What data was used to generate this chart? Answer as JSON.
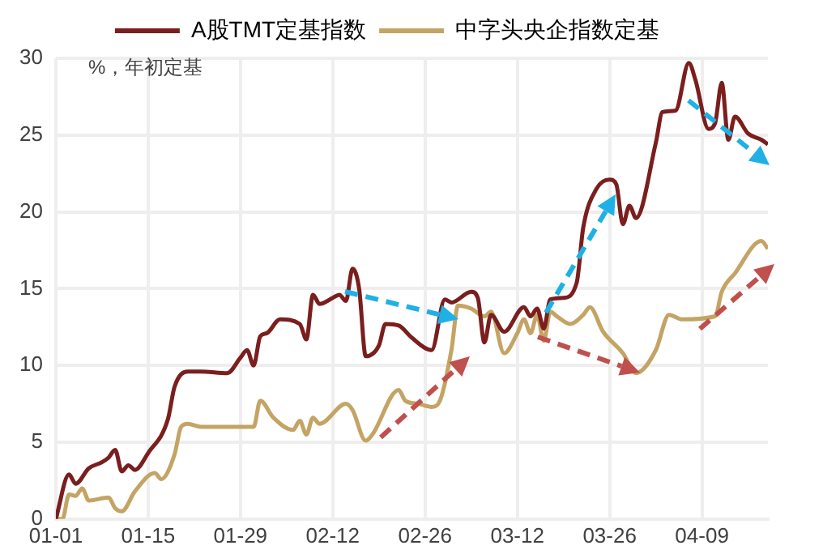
{
  "chart_data": {
    "type": "line",
    "annotations": [
      "%，年初定基"
    ],
    "xlim": [
      "--01-01",
      "--04-19"
    ],
    "xticks": [
      {
        "value": "--01-01",
        "label": "01-01"
      },
      {
        "value": "--01-15",
        "label": "01-15"
      },
      {
        "value": "--01-29",
        "label": "01-29"
      },
      {
        "value": "--02-12",
        "label": "02-12"
      },
      {
        "value": "--02-26",
        "label": "02-26"
      },
      {
        "value": "--03-12",
        "label": "03-12"
      },
      {
        "value": "--03-26",
        "label": "03-26"
      },
      {
        "value": "--04-09",
        "label": "04-09"
      }
    ],
    "ylim": [
      0,
      30
    ],
    "yticks": [
      0,
      5,
      10,
      15,
      20,
      25,
      30
    ],
    "grid": true,
    "legend": "top",
    "marker": "none",
    "line_style": "solid",
    "series": [
      {
        "name": "A股TMT定基指数",
        "color": "#7b1e1e",
        "x": [
          "--01-01",
          "--01-03",
          "--01-04",
          "--01-06",
          "--01-08",
          "--01-09",
          "--01-10",
          "--01-11",
          "--01-12",
          "--01-13",
          "--01-15",
          "--01-18",
          "--01-19",
          "--01-21",
          "--01-23",
          "--01-27",
          "--01-29",
          "--01-30",
          "--01-31",
          "--02-01",
          "--02-02",
          "--02-04",
          "--02-07",
          "--02-08",
          "--02-09",
          "--02-10",
          "--02-12",
          "--02-13",
          "--02-14",
          "--02-15",
          "--02-16",
          "--02-17",
          "--02-19",
          "--02-20",
          "--02-22",
          "--02-24",
          "--02-27",
          "--03-01",
          "--03-02",
          "--03-05",
          "--03-06",
          "--03-07",
          "--03-08",
          "--03-10",
          "--03-13",
          "--03-14",
          "--03-15",
          "--03-16",
          "--03-17",
          "--03-19",
          "--03-21",
          "--03-22",
          "--03-24",
          "--03-26",
          "--03-27",
          "--03-28",
          "--03-29",
          "--03-30",
          "--04-02",
          "--04-03",
          "--04-05",
          "--04-07",
          "--04-08",
          "--04-10",
          "--04-11",
          "--04-12",
          "--04-13",
          "--04-14",
          "--04-16",
          "--04-18",
          "--04-19"
        ],
        "values": [
          0,
          2.9,
          2.3,
          3.3,
          3.7,
          4.0,
          4.5,
          3.1,
          3.5,
          3.2,
          4.3,
          6.5,
          8.6,
          9.6,
          9.6,
          9.5,
          10.5,
          11,
          10,
          11.9,
          12.1,
          13,
          12.7,
          11.7,
          14.6,
          14,
          14.4,
          14.6,
          14.2,
          16.3,
          15,
          10.6,
          11.3,
          12.7,
          12.6,
          11.8,
          11,
          14.3,
          14.1,
          14.8,
          14.4,
          11.5,
          13.3,
          12.2,
          13.8,
          13.2,
          13.7,
          12.4,
          14.3,
          14.4,
          15.4,
          19,
          21.5,
          22.1,
          21.8,
          19.2,
          20.4,
          19.6,
          24.5,
          26.5,
          26.6,
          29.7,
          28.6,
          25.4,
          25.8,
          28.4,
          24.7,
          26.2,
          25.1,
          24.7,
          24.4
        ]
      },
      {
        "name": "中字头央企指数定基",
        "color": "#c4a465",
        "x": [
          "--01-01",
          "--01-02",
          "--01-03",
          "--01-04",
          "--01-05",
          "--01-06",
          "--01-09",
          "--01-10",
          "--01-11",
          "--01-13",
          "--01-16",
          "--01-17",
          "--01-19",
          "--01-20",
          "--01-21",
          "--01-23",
          "--01-31",
          "--02-01",
          "--02-03",
          "--02-06",
          "--02-07",
          "--02-08",
          "--02-09",
          "--02-10",
          "--02-14",
          "--02-15",
          "--02-17",
          "--02-18",
          "--02-22",
          "--02-23",
          "--02-25",
          "--02-27",
          "--02-28",
          "--03-02",
          "--03-03",
          "--03-05",
          "--03-07",
          "--03-08",
          "--03-10",
          "--03-12",
          "--03-13",
          "--03-14",
          "--03-15",
          "--03-16",
          "--03-17",
          "--03-18",
          "--03-20",
          "--03-22",
          "--03-23",
          "--03-25",
          "--03-28",
          "--03-30",
          "--04-02",
          "--04-04",
          "--04-06",
          "--04-11",
          "--04-12",
          "--04-14",
          "--04-18",
          "--04-19"
        ],
        "values": [
          0,
          0,
          1.6,
          1.5,
          2,
          1.2,
          1.4,
          0.7,
          0.5,
          1.8,
          3,
          2.6,
          4.2,
          6,
          6.2,
          6,
          6,
          7.7,
          6.6,
          5.8,
          6.4,
          5.5,
          6.6,
          6.2,
          7.5,
          7.1,
          5.1,
          5.5,
          8.4,
          7.7,
          7.5,
          7.3,
          7.5,
          11,
          13.9,
          13.7,
          13.2,
          13.5,
          10.8,
          12.1,
          13,
          12.1,
          13.3,
          11.6,
          13.5,
          13.2,
          12.7,
          13.3,
          13.8,
          12.2,
          10.8,
          9.5,
          11,
          13.3,
          13,
          13.2,
          14.8,
          16,
          18.1,
          17.6
        ]
      }
    ]
  }
}
